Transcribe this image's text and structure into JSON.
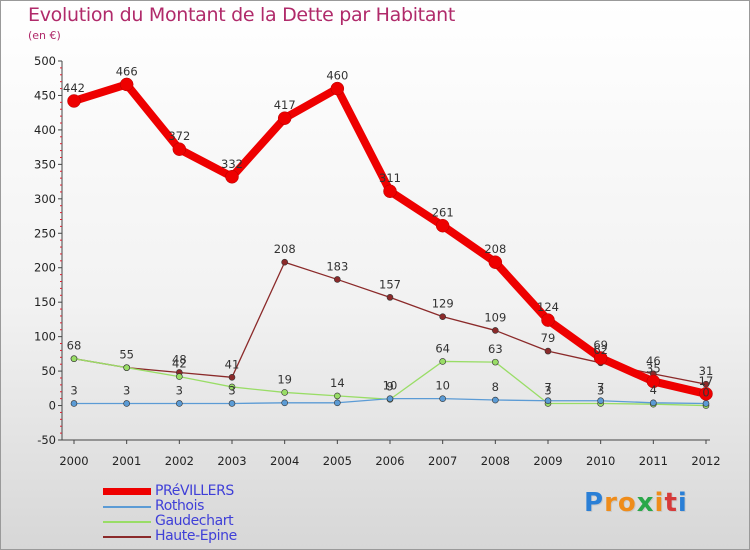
{
  "chart_data": {
    "type": "line",
    "title": "Evolution du Montant de la Dette par Habitant",
    "subtitle": "(en €)",
    "xlabel": "",
    "ylabel": "",
    "x": [
      "2000",
      "2001",
      "2002",
      "2003",
      "2004",
      "2005",
      "2006",
      "2007",
      "2008",
      "2009",
      "2010",
      "2011",
      "2012"
    ],
    "ylim": [
      -50,
      500
    ],
    "yticks": [
      -50,
      0,
      50,
      100,
      150,
      200,
      250,
      300,
      350,
      400,
      450,
      500
    ],
    "grid": false,
    "legend_position": "bottom-left",
    "series": [
      {
        "name": "PRéVILLERS",
        "color": "#ee0000",
        "values": [
          442,
          466,
          372,
          332,
          417,
          460,
          311,
          261,
          208,
          124,
          69,
          35,
          17
        ],
        "labels": [
          "442",
          "466",
          "372",
          "332",
          "417",
          "460",
          "311",
          "261",
          "208",
          "124",
          "69",
          "35",
          "17"
        ]
      },
      {
        "name": "Rothois",
        "color": "#5b9bd5",
        "values": [
          3,
          3,
          3,
          3,
          4,
          4,
          10,
          10,
          8,
          7,
          7,
          4,
          3
        ],
        "labels": [
          "3",
          "3",
          "3",
          "3",
          "",
          "",
          "10",
          "10",
          "8",
          "7",
          "7",
          "4",
          ""
        ]
      },
      {
        "name": "Gaudechart",
        "color": "#99dd66",
        "values": [
          68,
          55,
          42,
          27,
          19,
          14,
          9,
          64,
          63,
          3,
          3,
          2,
          0
        ],
        "labels": [
          "",
          "",
          "42",
          "",
          "19",
          "14",
          "9",
          "64",
          "63",
          "3",
          "3",
          "",
          "0"
        ]
      },
      {
        "name": "Haute-Epine",
        "color": "#8b2a2a",
        "values": [
          68,
          55,
          48,
          41,
          208,
          183,
          157,
          129,
          109,
          79,
          62,
          46,
          31
        ],
        "labels": [
          "68",
          "55",
          "48",
          "41",
          "208",
          "183",
          "157",
          "129",
          "109",
          "79",
          "62",
          "46",
          "31"
        ]
      }
    ]
  },
  "logo": {
    "letters": [
      "P",
      "r",
      "o",
      "x",
      "i",
      "t",
      "i"
    ],
    "colors": [
      "#2a7fd6",
      "#ef8c1a",
      "#ef8c1a",
      "#2aa84a",
      "#ef8c1a",
      "#d63a3a",
      "#2a7fd6"
    ]
  }
}
